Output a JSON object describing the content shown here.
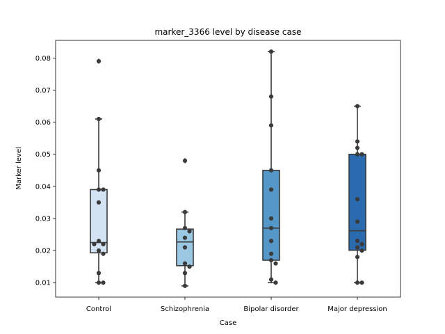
{
  "chart_data": {
    "type": "boxplot",
    "title": "marker_3366 level by disease case",
    "xlabel": "Case",
    "ylabel": "Marker level",
    "ylim": [
      0.0055,
      0.0855
    ],
    "yticks": [
      "0.01",
      "0.02",
      "0.03",
      "0.04",
      "0.05",
      "0.06",
      "0.07",
      "0.08"
    ],
    "grid": false,
    "categories": [
      "Control",
      "Schizophrenia",
      "Bipolar disorder",
      "Major depression"
    ],
    "colors": [
      "#d3e3f3",
      "#9ac7e1",
      "#5597c9",
      "#2a6aaf"
    ],
    "boxes": [
      {
        "q1": 0.0193,
        "median": 0.0225,
        "q3": 0.039,
        "whisker_low": 0.01,
        "whisker_high": 0.061,
        "outliers": [
          0.079
        ]
      },
      {
        "q1": 0.0153,
        "median": 0.0227,
        "q3": 0.0267,
        "whisker_low": 0.009,
        "whisker_high": 0.032,
        "outliers": [
          0.048
        ]
      },
      {
        "q1": 0.017,
        "median": 0.027,
        "q3": 0.045,
        "whisker_low": 0.01,
        "whisker_high": 0.082,
        "outliers": []
      },
      {
        "q1": 0.0201,
        "median": 0.0262,
        "q3": 0.05,
        "whisker_low": 0.01,
        "whisker_high": 0.065,
        "outliers": []
      }
    ],
    "points": [
      [
        0.079,
        0.061,
        0.045,
        0.039,
        0.039,
        0.035,
        0.023,
        0.022,
        0.022,
        0.02,
        0.019,
        0.013,
        0.01,
        0.01
      ],
      [
        0.048,
        0.032,
        0.027,
        0.026,
        0.024,
        0.021,
        0.016,
        0.015,
        0.013,
        0.009
      ],
      [
        0.082,
        0.068,
        0.059,
        0.045,
        0.039,
        0.03,
        0.027,
        0.023,
        0.019,
        0.017,
        0.016,
        0.011,
        0.01
      ],
      [
        0.065,
        0.054,
        0.052,
        0.05,
        0.05,
        0.036,
        0.029,
        0.023,
        0.022,
        0.021,
        0.02,
        0.018,
        0.01,
        0.01
      ]
    ]
  }
}
